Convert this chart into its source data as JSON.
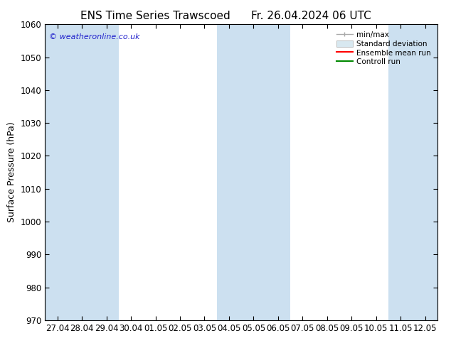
{
  "title_left": "ENS Time Series Trawscoed",
  "title_right": "Fr. 26.04.2024 06 UTC",
  "ylabel": "Surface Pressure (hPa)",
  "ylim": [
    970,
    1060
  ],
  "yticks": [
    970,
    980,
    990,
    1000,
    1010,
    1020,
    1030,
    1040,
    1050,
    1060
  ],
  "x_labels": [
    "27.04",
    "28.04",
    "29.04",
    "30.04",
    "01.05",
    "02.05",
    "03.05",
    "04.05",
    "05.05",
    "06.05",
    "07.05",
    "08.05",
    "09.05",
    "10.05",
    "11.05",
    "12.05"
  ],
  "n_points": 16,
  "shaded_band_indices": [
    0,
    1,
    2,
    7,
    8,
    9,
    14,
    15
  ],
  "band_color": "#cce0f0",
  "background_color": "#ffffff",
  "plot_bg_color": "#ffffff",
  "copyright_text": "© weatheronline.co.uk",
  "legend_items": [
    "min/max",
    "Standard deviation",
    "Ensemble mean run",
    "Controll run"
  ],
  "minmax_color": "#aaaaaa",
  "std_color": "#cccccc",
  "mean_color": "#ff0000",
  "ctrl_color": "#008800",
  "title_fontsize": 11,
  "label_fontsize": 9,
  "tick_fontsize": 8.5,
  "figsize": [
    6.34,
    4.9
  ],
  "dpi": 100
}
